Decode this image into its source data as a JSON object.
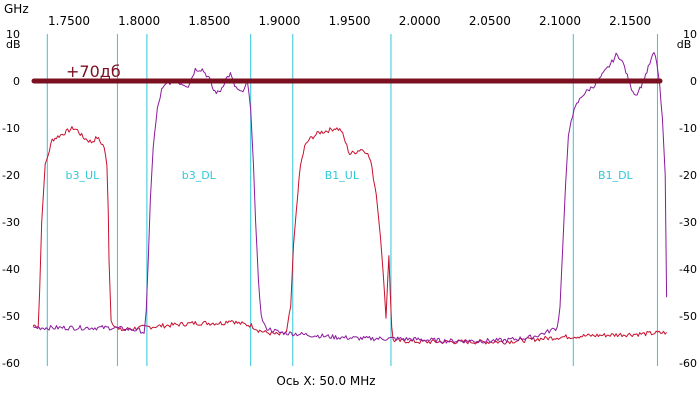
{
  "chart_data": {
    "type": "line",
    "x_unit_label": "GHz",
    "y_unit_label": "dB",
    "xlabel": "Ось X: 50.0 MHz",
    "xlim": [
      1.7243,
      2.1763
    ],
    "ylim": [
      -60,
      10
    ],
    "x_ticks": [
      "1.7500",
      "1.8000",
      "1.8500",
      "1.9000",
      "1.9500",
      "2.0000",
      "2.0500",
      "2.1000",
      "2.1500"
    ],
    "x_tick_values": [
      1.75,
      1.8,
      1.85,
      1.9,
      1.95,
      2.0,
      2.05,
      2.1,
      2.15
    ],
    "y_ticks": [
      "10",
      "0",
      "-10",
      "-20",
      "-30",
      "-40",
      "-50",
      "-60"
    ],
    "y_tick_values": [
      10,
      0,
      -10,
      -20,
      -30,
      -40,
      -50,
      -60
    ],
    "grid": false,
    "markers": [
      {
        "x": 1.7345
      },
      {
        "x": 1.7845
      },
      {
        "x": 1.8055
      },
      {
        "x": 1.8795
      },
      {
        "x": 1.9095
      },
      {
        "x": 1.9795
      },
      {
        "x": 2.1095
      },
      {
        "x": 2.1695
      }
    ],
    "band_labels": [
      {
        "text": "b3_UL",
        "x": 1.7595,
        "y": -20
      },
      {
        "text": "b3_DL",
        "x": 1.8425,
        "y": -20
      },
      {
        "text": "B1_UL",
        "x": 1.9445,
        "y": -20
      },
      {
        "text": "B1_DL",
        "x": 2.1395,
        "y": -20
      }
    ],
    "reference_line": {
      "y": 0,
      "label": "+70дб",
      "color": "#7a1020"
    },
    "series": [
      {
        "color": "#c8102e",
        "x": [
          1.7243,
          1.728,
          1.729,
          1.7305,
          1.733,
          1.738,
          1.744,
          1.75,
          1.753,
          1.756,
          1.76,
          1.766,
          1.77,
          1.775,
          1.777,
          1.778,
          1.7785,
          1.78,
          1.7855,
          1.8,
          1.82,
          1.84,
          1.86,
          1.865,
          1.87,
          1.88,
          1.885,
          1.89,
          1.9,
          1.905,
          1.908,
          1.91,
          1.913,
          1.915,
          1.918,
          1.921,
          1.928,
          1.935,
          1.94,
          1.944,
          1.947,
          1.95,
          1.955,
          1.958,
          1.962,
          1.965,
          1.969,
          1.972,
          1.975,
          1.976,
          1.977,
          1.978,
          1.979,
          1.98,
          1.981,
          1.982,
          1.983,
          1.99,
          2.0,
          2.03,
          2.06,
          2.08,
          2.1,
          2.12,
          2.14,
          2.16,
          2.176
        ],
        "y": [
          -52,
          -52,
          -45,
          -30,
          -18,
          -12.5,
          -11.5,
          -10.5,
          -10,
          -10.5,
          -12,
          -13,
          -12,
          -14,
          -18,
          -28,
          -38,
          -51,
          -53,
          -52.5,
          -52,
          -51.5,
          -51.5,
          -50.8,
          -51.5,
          -52,
          -53,
          -53.5,
          -54,
          -53.5,
          -48,
          -35,
          -24,
          -18,
          -14,
          -12.5,
          -11,
          -10.5,
          -10,
          -10.5,
          -13,
          -15.5,
          -15,
          -14.5,
          -15,
          -17,
          -24,
          -33,
          -45,
          -50.5,
          -43,
          -37,
          -45,
          -52.5,
          -55,
          -55.2,
          -55.3,
          -55.3,
          -55.5,
          -55.5,
          -55.5,
          -55,
          -54.5,
          -54.2,
          -54,
          -53.8,
          -53.5
        ]
      },
      {
        "color": "#8b1a9e",
        "x": [
          1.7243,
          1.74,
          1.76,
          1.78,
          1.79,
          1.8,
          1.8035,
          1.805,
          1.8065,
          1.808,
          1.81,
          1.813,
          1.816,
          1.82,
          1.825,
          1.83,
          1.835,
          1.84,
          1.845,
          1.85,
          1.853,
          1.856,
          1.858,
          1.862,
          1.865,
          1.868,
          1.872,
          1.875,
          1.877,
          1.8795,
          1.8815,
          1.883,
          1.885,
          1.887,
          1.89,
          1.9,
          1.92,
          1.94,
          1.96,
          1.98,
          2.0,
          2.02,
          2.04,
          2.06,
          2.08,
          2.09,
          2.098,
          2.1,
          2.102,
          2.104,
          2.106,
          2.108,
          2.112,
          2.116,
          2.12,
          2.126,
          2.132,
          2.137,
          2.14,
          2.143,
          2.146,
          2.15,
          2.154,
          2.158,
          2.162,
          2.165,
          2.167,
          2.169,
          2.171,
          2.173,
          2.175,
          2.176
        ],
        "y": [
          -52.5,
          -52.5,
          -52.5,
          -52.5,
          -52.8,
          -53,
          -53.5,
          -49,
          -38,
          -25,
          -14,
          -6,
          -2,
          -0.5,
          0,
          -0.5,
          -1,
          2.5,
          2.5,
          0.5,
          -2,
          -2.5,
          -2,
          0.5,
          1.5,
          -1,
          -2.5,
          -2,
          0,
          -6,
          -18,
          -30,
          -42,
          -50,
          -52.5,
          -53.5,
          -54,
          -54.5,
          -54.8,
          -54.8,
          -55,
          -55.3,
          -55.3,
          -55.2,
          -54.5,
          -53.5,
          -52.5,
          -48,
          -35,
          -22,
          -12,
          -8,
          -5,
          -3,
          -2,
          -0.5,
          2,
          4,
          5.5,
          5,
          3,
          -1,
          -3,
          -1,
          2,
          4.5,
          6,
          4,
          -1,
          -8,
          -20,
          -46
        ]
      }
    ]
  }
}
